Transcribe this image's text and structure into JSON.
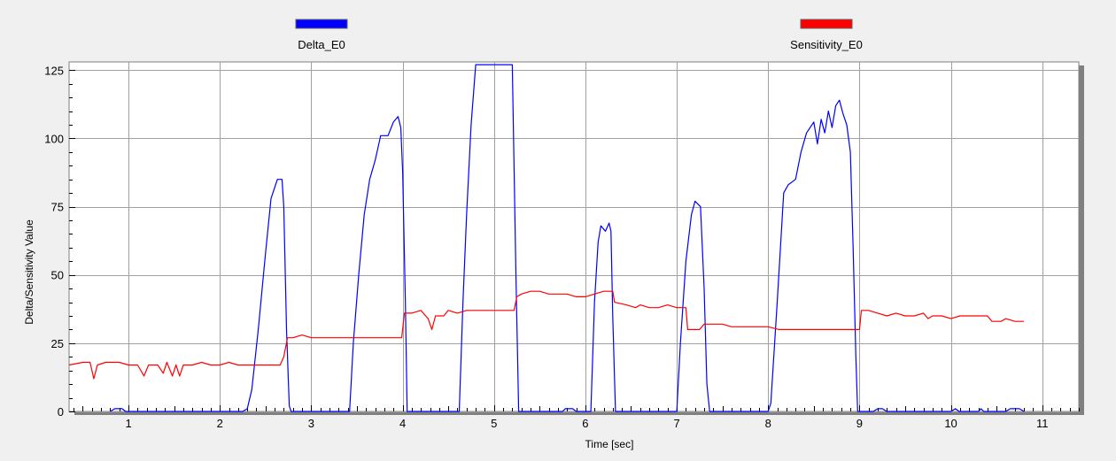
{
  "colors": {
    "background": "#f0f0f0",
    "plot_background": "#ffffff",
    "grid": "#a0a0a0",
    "delta": "#0000ff",
    "sensitivity": "#ff0000",
    "plot_shadow": "#808080"
  },
  "chart_data": {
    "type": "line",
    "xlabel": "Time [sec]",
    "ylabel": "Delta/Sensitivity Value",
    "xlim": [
      0.35,
      11.4
    ],
    "ylim": [
      0,
      128
    ],
    "x_ticks": [
      1,
      2,
      3,
      4,
      5,
      6,
      7,
      8,
      9,
      10,
      11
    ],
    "y_ticks": [
      0,
      25,
      50,
      75,
      100,
      125
    ],
    "grid": true,
    "legend_position": "top",
    "series": [
      {
        "name": "Delta_E0",
        "color": "#0000ff",
        "points": [
          [
            0.8,
            0
          ],
          [
            0.85,
            1
          ],
          [
            0.93,
            1
          ],
          [
            0.97,
            0
          ],
          [
            2.25,
            0
          ],
          [
            2.3,
            1
          ],
          [
            2.35,
            8
          ],
          [
            2.42,
            30
          ],
          [
            2.5,
            58
          ],
          [
            2.56,
            78
          ],
          [
            2.6,
            82
          ],
          [
            2.63,
            85
          ],
          [
            2.68,
            85
          ],
          [
            2.7,
            75
          ],
          [
            2.73,
            30
          ],
          [
            2.76,
            2
          ],
          [
            2.78,
            0
          ],
          [
            3.42,
            0
          ],
          [
            3.46,
            25
          ],
          [
            3.52,
            50
          ],
          [
            3.58,
            72
          ],
          [
            3.64,
            85
          ],
          [
            3.7,
            92
          ],
          [
            3.76,
            101
          ],
          [
            3.84,
            101
          ],
          [
            3.9,
            106
          ],
          [
            3.95,
            108
          ],
          [
            3.98,
            104
          ],
          [
            4.0,
            88
          ],
          [
            4.03,
            40
          ],
          [
            4.05,
            0
          ],
          [
            4.62,
            0
          ],
          [
            4.66,
            40
          ],
          [
            4.7,
            72
          ],
          [
            4.75,
            105
          ],
          [
            4.8,
            127
          ],
          [
            5.2,
            127
          ],
          [
            5.24,
            50
          ],
          [
            5.27,
            0
          ],
          [
            5.75,
            0
          ],
          [
            5.78,
            1
          ],
          [
            5.86,
            1
          ],
          [
            5.9,
            0
          ],
          [
            6.06,
            0
          ],
          [
            6.1,
            40
          ],
          [
            6.14,
            62
          ],
          [
            6.17,
            68
          ],
          [
            6.22,
            66
          ],
          [
            6.26,
            69
          ],
          [
            6.28,
            66
          ],
          [
            6.3,
            35
          ],
          [
            6.33,
            0
          ],
          [
            7.0,
            0
          ],
          [
            7.04,
            25
          ],
          [
            7.1,
            55
          ],
          [
            7.16,
            72
          ],
          [
            7.2,
            77
          ],
          [
            7.26,
            75
          ],
          [
            7.3,
            45
          ],
          [
            7.33,
            10
          ],
          [
            7.36,
            0
          ],
          [
            8.0,
            0
          ],
          [
            8.03,
            3
          ],
          [
            8.1,
            40
          ],
          [
            8.17,
            80
          ],
          [
            8.22,
            83
          ],
          [
            8.3,
            85
          ],
          [
            8.36,
            95
          ],
          [
            8.42,
            102
          ],
          [
            8.5,
            106
          ],
          [
            8.54,
            98
          ],
          [
            8.58,
            107
          ],
          [
            8.62,
            102
          ],
          [
            8.66,
            110
          ],
          [
            8.7,
            104
          ],
          [
            8.74,
            112
          ],
          [
            8.78,
            114
          ],
          [
            8.82,
            109
          ],
          [
            8.86,
            105
          ],
          [
            8.9,
            95
          ],
          [
            8.93,
            60
          ],
          [
            8.96,
            20
          ],
          [
            8.98,
            0
          ],
          [
            9.15,
            0
          ],
          [
            9.2,
            1
          ],
          [
            9.25,
            1
          ],
          [
            9.3,
            0
          ],
          [
            10.0,
            0
          ],
          [
            10.05,
            1
          ],
          [
            10.09,
            0
          ],
          [
            10.3,
            0
          ],
          [
            10.33,
            1
          ],
          [
            10.36,
            0
          ],
          [
            10.6,
            0
          ],
          [
            10.65,
            1
          ],
          [
            10.75,
            1
          ],
          [
            10.8,
            0
          ]
        ]
      },
      {
        "name": "Sensitivity_E0",
        "color": "#ff0000",
        "points": [
          [
            0.35,
            17
          ],
          [
            0.5,
            18
          ],
          [
            0.58,
            18
          ],
          [
            0.62,
            12
          ],
          [
            0.66,
            17
          ],
          [
            0.75,
            18
          ],
          [
            0.9,
            18
          ],
          [
            1.0,
            17
          ],
          [
            1.1,
            17
          ],
          [
            1.17,
            13
          ],
          [
            1.22,
            17
          ],
          [
            1.32,
            17
          ],
          [
            1.38,
            14
          ],
          [
            1.42,
            18
          ],
          [
            1.48,
            13
          ],
          [
            1.52,
            17
          ],
          [
            1.56,
            13
          ],
          [
            1.6,
            17
          ],
          [
            1.7,
            17
          ],
          [
            1.8,
            18
          ],
          [
            1.9,
            17
          ],
          [
            2.0,
            17
          ],
          [
            2.1,
            18
          ],
          [
            2.2,
            17
          ],
          [
            2.3,
            17
          ],
          [
            2.5,
            17
          ],
          [
            2.66,
            17
          ],
          [
            2.7,
            20
          ],
          [
            2.74,
            27
          ],
          [
            2.8,
            27
          ],
          [
            2.9,
            28
          ],
          [
            3.0,
            27
          ],
          [
            3.1,
            27
          ],
          [
            3.2,
            27
          ],
          [
            3.3,
            27
          ],
          [
            3.4,
            27
          ],
          [
            3.55,
            27
          ],
          [
            3.7,
            27
          ],
          [
            3.85,
            27
          ],
          [
            3.99,
            27
          ],
          [
            4.02,
            36
          ],
          [
            4.1,
            36
          ],
          [
            4.2,
            37
          ],
          [
            4.28,
            34
          ],
          [
            4.32,
            30
          ],
          [
            4.36,
            35
          ],
          [
            4.45,
            35
          ],
          [
            4.5,
            37
          ],
          [
            4.6,
            36
          ],
          [
            4.7,
            37
          ],
          [
            4.9,
            37
          ],
          [
            5.1,
            37
          ],
          [
            5.22,
            37
          ],
          [
            5.25,
            42
          ],
          [
            5.3,
            43
          ],
          [
            5.4,
            44
          ],
          [
            5.5,
            44
          ],
          [
            5.6,
            43
          ],
          [
            5.7,
            43
          ],
          [
            5.8,
            43
          ],
          [
            5.9,
            42
          ],
          [
            6.0,
            42
          ],
          [
            6.1,
            43
          ],
          [
            6.2,
            44
          ],
          [
            6.3,
            44
          ],
          [
            6.32,
            40
          ],
          [
            6.45,
            39
          ],
          [
            6.55,
            38
          ],
          [
            6.6,
            39
          ],
          [
            6.7,
            38
          ],
          [
            6.8,
            38
          ],
          [
            6.9,
            39
          ],
          [
            7.0,
            38
          ],
          [
            7.1,
            38
          ],
          [
            7.12,
            30
          ],
          [
            7.25,
            30
          ],
          [
            7.3,
            32
          ],
          [
            7.4,
            32
          ],
          [
            7.5,
            32
          ],
          [
            7.6,
            31
          ],
          [
            7.7,
            31
          ],
          [
            7.8,
            31
          ],
          [
            8.0,
            31
          ],
          [
            8.12,
            30
          ],
          [
            8.3,
            30
          ],
          [
            8.5,
            30
          ],
          [
            8.7,
            30
          ],
          [
            8.9,
            30
          ],
          [
            9.0,
            30
          ],
          [
            9.02,
            37
          ],
          [
            9.1,
            37
          ],
          [
            9.2,
            36
          ],
          [
            9.3,
            35
          ],
          [
            9.4,
            36
          ],
          [
            9.5,
            35
          ],
          [
            9.6,
            35
          ],
          [
            9.7,
            36
          ],
          [
            9.75,
            34
          ],
          [
            9.8,
            35
          ],
          [
            9.9,
            35
          ],
          [
            10.0,
            34
          ],
          [
            10.1,
            35
          ],
          [
            10.2,
            35
          ],
          [
            10.3,
            35
          ],
          [
            10.4,
            35
          ],
          [
            10.45,
            33
          ],
          [
            10.55,
            33
          ],
          [
            10.6,
            34
          ],
          [
            10.7,
            33
          ],
          [
            10.8,
            33
          ]
        ]
      }
    ]
  }
}
